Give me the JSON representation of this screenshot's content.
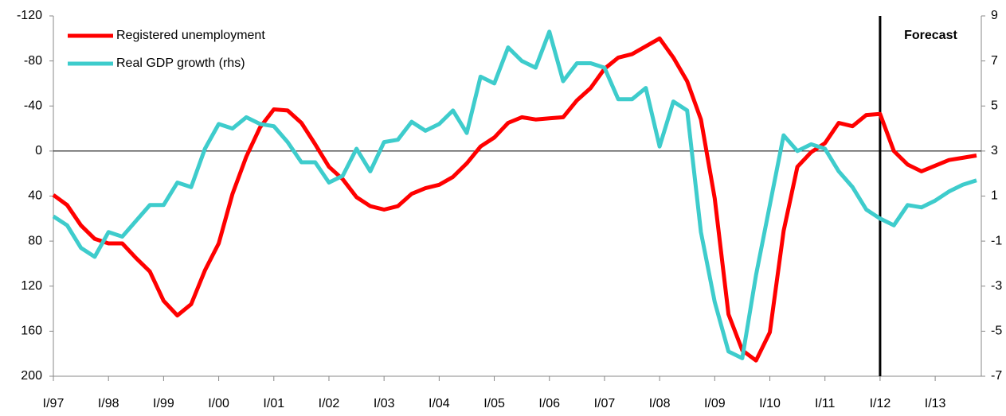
{
  "chart_data": {
    "type": "line",
    "categories": [
      "I/97",
      null,
      null,
      null,
      "I/98",
      null,
      null,
      null,
      "I/99",
      null,
      null,
      null,
      "I/00",
      null,
      null,
      null,
      "I/01",
      null,
      null,
      null,
      "I/02",
      null,
      null,
      null,
      "I/03",
      null,
      null,
      null,
      "I/04",
      null,
      null,
      null,
      "I/05",
      null,
      null,
      null,
      "I/06",
      null,
      null,
      null,
      "I/07",
      null,
      null,
      null,
      "I/08",
      null,
      null,
      null,
      "I/09",
      null,
      null,
      null,
      "I/10",
      null,
      null,
      null,
      "I/11",
      null,
      null,
      null,
      "I/12",
      null,
      null,
      null,
      "I/13",
      null,
      null,
      null
    ],
    "series": [
      {
        "name": "Registered unemployment",
        "color": "#ff0000",
        "values": [
          39,
          48,
          66,
          78,
          82,
          82,
          95,
          107,
          133,
          146,
          136,
          106,
          82,
          38,
          5,
          -21,
          -37,
          -36,
          -25,
          -6,
          14,
          25,
          41,
          49,
          52,
          49,
          38,
          33,
          30,
          23,
          11,
          -4,
          -12,
          -25,
          -30,
          -28,
          -29,
          -30,
          -45,
          -56,
          -73,
          -83,
          -86,
          -93,
          -100,
          -83,
          -62,
          -28,
          42,
          145,
          177,
          186,
          161,
          71,
          14,
          1,
          -7,
          -25,
          -22,
          -32,
          -33,
          0,
          12,
          18,
          13,
          8,
          6,
          4
        ]
      },
      {
        "name": "Real GDP growth (rhs)",
        "color": "#3ecccc",
        "axis": "y2",
        "values": [
          0.1,
          -0.3,
          -1.3,
          -1.7,
          -0.6,
          -0.8,
          -0.1,
          0.6,
          0.6,
          1.6,
          1.4,
          3.1,
          4.2,
          4.0,
          4.5,
          4.2,
          4.1,
          3.4,
          2.5,
          2.5,
          1.6,
          1.9,
          3.1,
          2.1,
          3.4,
          3.5,
          4.3,
          3.9,
          4.2,
          4.8,
          3.8,
          6.3,
          6.0,
          7.6,
          7.0,
          6.7,
          8.3,
          6.1,
          6.9,
          6.9,
          6.7,
          5.3,
          5.3,
          5.8,
          3.2,
          5.2,
          4.8,
          -0.6,
          -3.7,
          -5.9,
          -6.2,
          -2.5,
          0.6,
          3.7,
          3.0,
          3.3,
          3.1,
          2.1,
          1.4,
          0.4,
          0.0,
          -0.3,
          0.6,
          0.5,
          0.8,
          1.2,
          1.5,
          1.7
        ]
      }
    ],
    "ylim": [
      200,
      -120
    ],
    "yticks": [
      -120,
      -80,
      -40,
      0,
      40,
      80,
      120,
      160,
      200
    ],
    "y2lim": [
      -7,
      9
    ],
    "y2ticks": [
      9,
      7,
      5,
      3,
      1,
      -1,
      -3,
      -5,
      -7
    ],
    "annotations": [
      {
        "text": "Forecast",
        "x": "I/12"
      }
    ],
    "legend": "top-left"
  }
}
